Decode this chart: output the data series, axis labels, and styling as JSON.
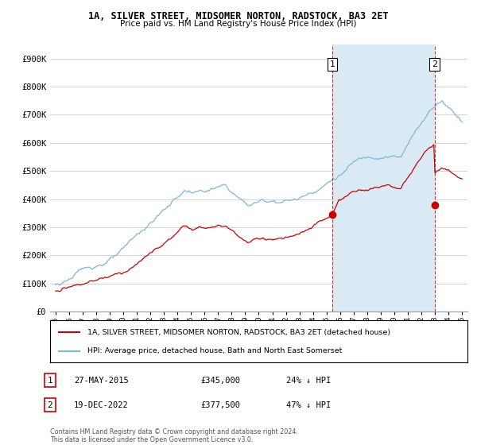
{
  "title": "1A, SILVER STREET, MIDSOMER NORTON, RADSTOCK, BA3 2ET",
  "subtitle": "Price paid vs. HM Land Registry's House Price Index (HPI)",
  "ylim": [
    0,
    950000
  ],
  "yticks": [
    0,
    100000,
    200000,
    300000,
    400000,
    500000,
    600000,
    700000,
    800000,
    900000
  ],
  "ytick_labels": [
    "£0",
    "£100K",
    "£200K",
    "£300K",
    "£400K",
    "£500K",
    "£600K",
    "£700K",
    "£800K",
    "£900K"
  ],
  "hpi_color": "#7ab8d9",
  "price_color": "#cc0000",
  "shade_color": "#daeaf5",
  "marker1_date_x": 2015.42,
  "marker1_y": 345000,
  "marker2_date_x": 2022.97,
  "marker2_y": 377500,
  "vline_color": "#cc0000",
  "legend_label_price": "1A, SILVER STREET, MIDSOMER NORTON, RADSTOCK, BA3 2ET (detached house)",
  "legend_label_hpi": "HPI: Average price, detached house, Bath and North East Somerset",
  "footnote": "Contains HM Land Registry data © Crown copyright and database right 2024.\nThis data is licensed under the Open Government Licence v3.0.",
  "table_row1_label": "1",
  "table_row1_date": "27-MAY-2015",
  "table_row1_price": "£345,000",
  "table_row1_note": "24% ↓ HPI",
  "table_row2_label": "2",
  "table_row2_date": "19-DEC-2022",
  "table_row2_price": "£377,500",
  "table_row2_note": "47% ↓ HPI",
  "bg_color": "#ffffff",
  "grid_color": "#cccccc",
  "xlim_left": 1994.6,
  "xlim_right": 2025.4
}
